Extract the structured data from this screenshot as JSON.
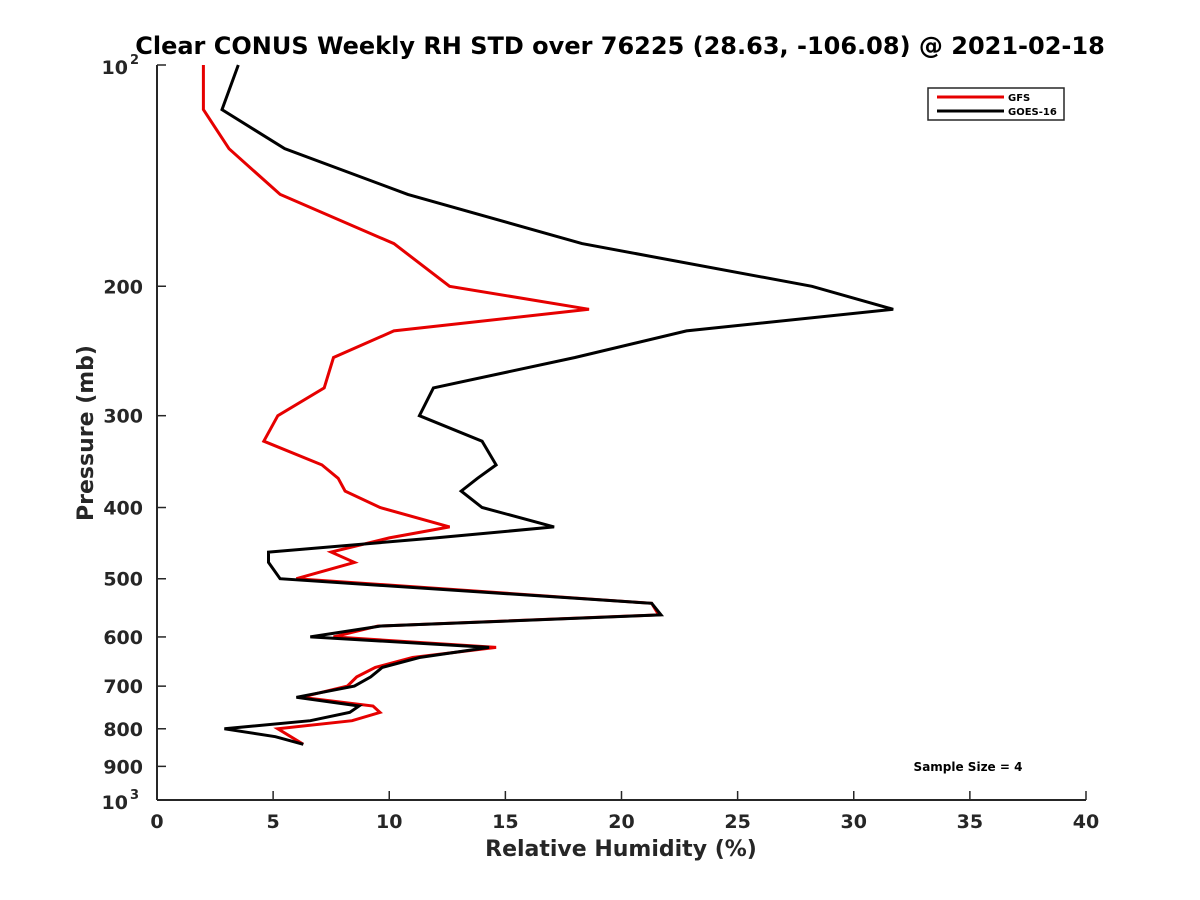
{
  "chart_data": {
    "type": "line",
    "title": "Clear CONUS Weekly RH STD over 76225 (28.63, -106.08) @ 2021-02-18",
    "xlabel": "Relative Humidity (%)",
    "ylabel": "Pressure (mb)",
    "xlim": [
      0,
      40
    ],
    "ylim": [
      100,
      1000
    ],
    "yscale": "log",
    "y_reversed": true,
    "grid": false,
    "legend_position": "top-right",
    "x_ticks": [
      "0",
      "5",
      "10",
      "15",
      "20",
      "25",
      "30",
      "35",
      "40"
    ],
    "y_ticks": [
      {
        "value": 100,
        "base": "10",
        "exp": "2"
      },
      {
        "value": 200,
        "label": "200"
      },
      {
        "value": 300,
        "label": "300"
      },
      {
        "value": 400,
        "label": "400"
      },
      {
        "value": 500,
        "label": "500"
      },
      {
        "value": 600,
        "label": "600"
      },
      {
        "value": 700,
        "label": "700"
      },
      {
        "value": 800,
        "label": "800"
      },
      {
        "value": 900,
        "label": "900"
      },
      {
        "value": 1000,
        "base": "10",
        "exp": "3"
      }
    ],
    "annotation": "Sample Size = 4",
    "series": [
      {
        "name": "GFS",
        "color": "#e60000",
        "points": [
          [
            2.0,
            100
          ],
          [
            2.0,
            115
          ],
          [
            3.1,
            130
          ],
          [
            5.3,
            150
          ],
          [
            10.2,
            175
          ],
          [
            12.6,
            200
          ],
          [
            18.6,
            215
          ],
          [
            10.2,
            230
          ],
          [
            7.6,
            250
          ],
          [
            7.2,
            275
          ],
          [
            5.2,
            300
          ],
          [
            4.6,
            325
          ],
          [
            7.1,
            350
          ],
          [
            7.8,
            365
          ],
          [
            8.1,
            380
          ],
          [
            9.6,
            400
          ],
          [
            12.6,
            425
          ],
          [
            10.0,
            440
          ],
          [
            7.5,
            460
          ],
          [
            8.5,
            475
          ],
          [
            6.0,
            500
          ],
          [
            21.3,
            540
          ],
          [
            21.6,
            560
          ],
          [
            9.5,
            580
          ],
          [
            7.6,
            600
          ],
          [
            14.6,
            620
          ],
          [
            11.0,
            640
          ],
          [
            9.4,
            660
          ],
          [
            8.6,
            680
          ],
          [
            8.2,
            700
          ],
          [
            6.2,
            725
          ],
          [
            9.3,
            745
          ],
          [
            9.6,
            760
          ],
          [
            8.4,
            780
          ],
          [
            5.2,
            800
          ],
          [
            6.3,
            840
          ]
        ]
      },
      {
        "name": "GOES-16",
        "color": "#000000",
        "points": [
          [
            3.5,
            100
          ],
          [
            2.8,
            115
          ],
          [
            5.5,
            130
          ],
          [
            10.8,
            150
          ],
          [
            18.3,
            175
          ],
          [
            28.2,
            200
          ],
          [
            31.7,
            215
          ],
          [
            22.8,
            230
          ],
          [
            18.0,
            250
          ],
          [
            11.9,
            275
          ],
          [
            11.3,
            300
          ],
          [
            14.0,
            325
          ],
          [
            14.6,
            350
          ],
          [
            13.8,
            365
          ],
          [
            13.1,
            380
          ],
          [
            14.0,
            400
          ],
          [
            17.1,
            425
          ],
          [
            12.0,
            440
          ],
          [
            4.8,
            460
          ],
          [
            4.8,
            475
          ],
          [
            5.3,
            500
          ],
          [
            21.3,
            540
          ],
          [
            21.7,
            560
          ],
          [
            9.6,
            580
          ],
          [
            6.6,
            600
          ],
          [
            14.3,
            620
          ],
          [
            11.3,
            640
          ],
          [
            9.7,
            660
          ],
          [
            9.2,
            680
          ],
          [
            8.5,
            700
          ],
          [
            6.0,
            725
          ],
          [
            8.7,
            745
          ],
          [
            8.3,
            760
          ],
          [
            6.6,
            780
          ],
          [
            2.9,
            800
          ],
          [
            5.1,
            820
          ],
          [
            6.3,
            840
          ]
        ]
      }
    ]
  }
}
